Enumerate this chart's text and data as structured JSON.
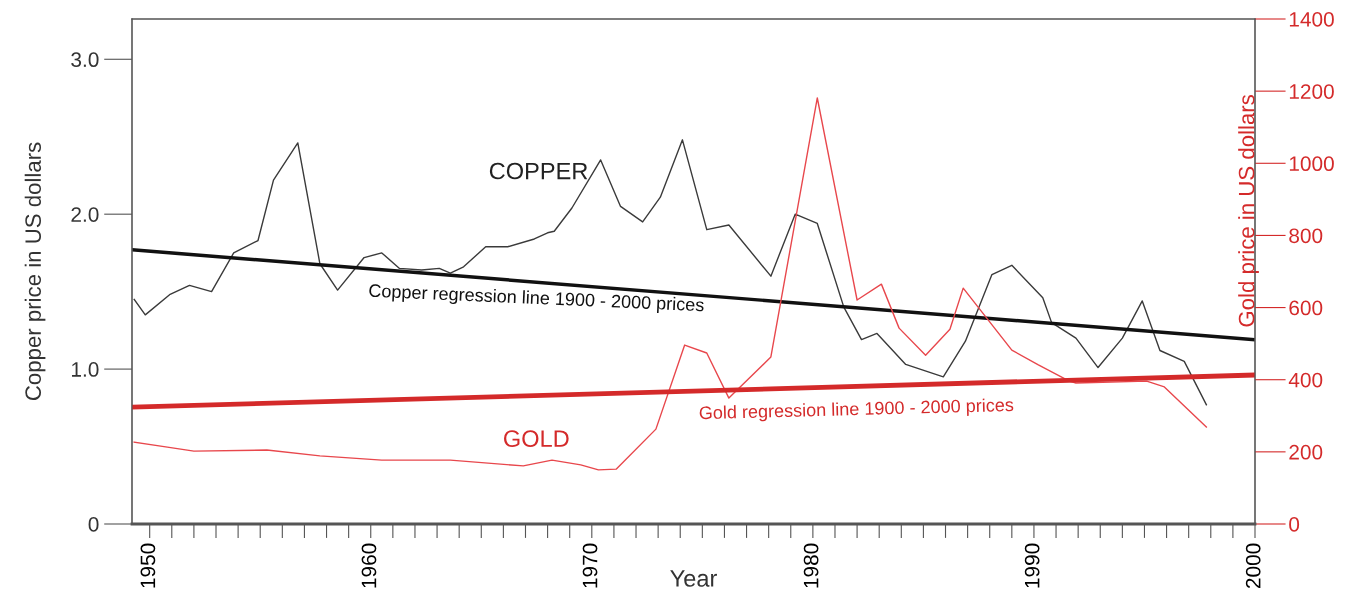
{
  "chart_data": {
    "type": "line",
    "xlabel": "Year",
    "ylabel": "Copper price in US dollars",
    "y2label": "Gold price in US dollars",
    "xlim": [
      1949.2,
      2000
    ],
    "ylim": [
      0,
      3.26
    ],
    "yticks": [
      0,
      {
        "value": 1,
        "label": "1.0"
      },
      {
        "value": 2,
        "label": "2.0"
      },
      {
        "value": 3,
        "label": "3.0"
      }
    ],
    "y2lim": [
      0,
      1400
    ],
    "y2ticks": [
      0,
      200,
      400,
      600,
      800,
      1000,
      1200,
      1400
    ],
    "xticks": [
      1950,
      {
        "value": 1951,
        "label": null
      },
      {
        "value": 1952,
        "label": null
      },
      {
        "value": 1953,
        "label": null
      },
      {
        "value": 1954,
        "label": null
      },
      {
        "value": 1955,
        "label": null
      },
      {
        "value": 1956,
        "label": null
      },
      {
        "value": 1957,
        "label": null
      },
      {
        "value": 1958,
        "label": null
      },
      {
        "value": 1959,
        "label": null
      },
      1960,
      {
        "value": 1961,
        "label": null
      },
      {
        "value": 1962,
        "label": null
      },
      {
        "value": 1963,
        "label": null
      },
      {
        "value": 1964,
        "label": null
      },
      {
        "value": 1965,
        "label": null
      },
      {
        "value": 1966,
        "label": null
      },
      {
        "value": 1967,
        "label": null
      },
      {
        "value": 1968,
        "label": null
      },
      {
        "value": 1969,
        "label": null
      },
      1970,
      {
        "value": 1971,
        "label": null
      },
      {
        "value": 1972,
        "label": null
      },
      {
        "value": 1973,
        "label": null
      },
      {
        "value": 1974,
        "label": null
      },
      {
        "value": 1975,
        "label": null
      },
      {
        "value": 1976,
        "label": null
      },
      {
        "value": 1977,
        "label": null
      },
      {
        "value": 1978,
        "label": null
      },
      {
        "value": 1979,
        "label": null
      },
      1980,
      {
        "value": 1981,
        "label": null
      },
      {
        "value": 1982,
        "label": null
      },
      {
        "value": 1983,
        "label": null
      },
      {
        "value": 1984,
        "label": null
      },
      {
        "value": 1985,
        "label": null
      },
      {
        "value": 1986,
        "label": null
      },
      {
        "value": 1987,
        "label": null
      },
      {
        "value": 1988,
        "label": null
      },
      {
        "value": 1989,
        "label": null
      },
      1990,
      {
        "value": 1991,
        "label": null
      },
      {
        "value": 1992,
        "label": null
      },
      {
        "value": 1993,
        "label": null
      },
      {
        "value": 1994,
        "label": null
      },
      {
        "value": 1995,
        "label": null
      },
      {
        "value": 1996,
        "label": null
      },
      {
        "value": 1997,
        "label": null
      },
      {
        "value": 1998,
        "label": null
      },
      {
        "value": 1999,
        "label": null
      },
      2000
    ],
    "grid": false,
    "legend": false,
    "marker": "none",
    "line_style": "solid",
    "series": [
      {
        "color": "#3a3a3a",
        "x": [
          1949.3,
          1949.8,
          1950.9,
          1951.8,
          1952.8,
          1953.8,
          1954.9,
          1955.6,
          1956.7,
          1957.7,
          1958.5,
          1959.7,
          1960.5,
          1961.3,
          1962.3,
          1963.1,
          1963.6,
          1964.2,
          1965.2,
          1966.2,
          1967.4,
          1968.0,
          1968.3,
          1969.1,
          1970.4,
          1971.3,
          1972.3,
          1973.1,
          1974.1,
          1975.2,
          1976.2,
          1978.1,
          1979.2,
          1980.2,
          1981.4,
          1982.2,
          1982.9,
          1984.2,
          1985.9,
          1986.9,
          1988.1,
          1989.0,
          1990.4,
          1990.8,
          1991.9,
          1992.9,
          1994.0,
          1994.9,
          1995.7,
          1996.8,
          1997.8
        ],
        "values": [
          1.45,
          1.35,
          1.48,
          1.54,
          1.5,
          1.75,
          1.83,
          2.22,
          2.46,
          1.68,
          1.51,
          1.72,
          1.75,
          1.65,
          1.64,
          1.65,
          1.62,
          1.66,
          1.79,
          1.79,
          1.84,
          1.88,
          1.89,
          2.04,
          2.35,
          2.05,
          1.95,
          2.11,
          2.48,
          1.9,
          1.93,
          1.6,
          2.0,
          1.94,
          1.4,
          1.19,
          1.23,
          1.03,
          0.95,
          1.18,
          1.61,
          1.67,
          1.46,
          1.3,
          1.2,
          1.01,
          1.2,
          1.44,
          1.12,
          1.05,
          0.77
        ]
      },
      {
        "color": "#e8474c",
        "axis": "y2",
        "x": [
          1949.3,
          1950.8,
          1952.0,
          1955.3,
          1957.7,
          1960.5,
          1963.6,
          1966.9,
          1968.2,
          1969.5,
          1970.3,
          1971.1,
          1972.9,
          1974.2,
          1975.2,
          1976.2,
          1978.1,
          1980.2,
          1982.0,
          1983.1,
          1983.9,
          1985.1,
          1986.2,
          1986.8,
          1989.0,
          1990.2,
          1991.6,
          1991.9,
          1995.1,
          1995.9,
          1997.8
        ],
        "values": [
          227,
          213,
          202,
          205,
          189,
          177,
          177,
          161,
          177,
          164,
          150,
          152,
          263,
          496,
          474,
          349,
          463,
          1181,
          621,
          665,
          543,
          468,
          540,
          654,
          482,
          441,
          396,
          391,
          396,
          380,
          269
        ]
      },
      {
        "color": "#111111",
        "x": [
          1949.2,
          2000
        ],
        "values": [
          1.77,
          1.19
        ]
      },
      {
        "color": "#d42a2a",
        "axis": "y2",
        "x": [
          1949.2,
          2000
        ],
        "values": [
          324,
          413
        ]
      }
    ],
    "annotations": [
      "COPPER",
      "GOLD",
      "Copper regression line 1900 - 2000 prices",
      "Gold regression line 1900 - 2000 prices"
    ]
  }
}
